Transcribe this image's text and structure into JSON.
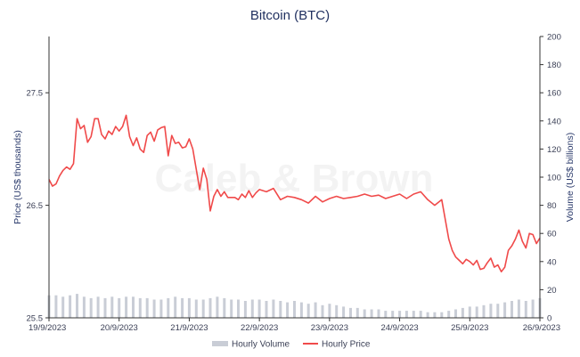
{
  "chart_data": {
    "type": "line",
    "title": "Bitcoin (BTC)",
    "watermark": "Caleb & Brown",
    "ylabel_left": "Price (US$ thousands)",
    "ylabel_right": "Volume (US$ billions)",
    "ylim_left": [
      25.5,
      28.0
    ],
    "ylim_right": [
      0,
      200
    ],
    "yticks_left": [
      "25.5",
      "26.5",
      "27.5"
    ],
    "yticks_left_values": [
      25.5,
      26.5,
      27.5
    ],
    "yticks_right": [
      "0",
      "20",
      "40",
      "60",
      "80",
      "100",
      "120",
      "140",
      "160",
      "180",
      "200"
    ],
    "yticks_right_values": [
      0,
      20,
      40,
      60,
      80,
      100,
      120,
      140,
      160,
      180,
      200
    ],
    "xticks": [
      "19/9/2023",
      "20/9/2023",
      "21/9/2023",
      "22/9/2023",
      "23/9/2023",
      "24/9/2023",
      "25/9/2023",
      "26/9/2023"
    ],
    "xticks_values": [
      0,
      1,
      2,
      3,
      4,
      5,
      6,
      7
    ],
    "xlim": [
      0,
      7
    ],
    "legend": [
      {
        "label": "Hourly Volume",
        "color": "#c9cdd6",
        "kind": "bar"
      },
      {
        "label": "Hourly Price",
        "color": "#f04a4a",
        "kind": "line"
      }
    ],
    "legend_position": "bottom",
    "grid": false,
    "series": [
      {
        "name": "Hourly Price",
        "axis": "left",
        "color": "#f04a4a",
        "x": [
          0,
          0.05,
          0.1,
          0.15,
          0.2,
          0.25,
          0.3,
          0.35,
          0.4,
          0.45,
          0.5,
          0.55,
          0.6,
          0.65,
          0.7,
          0.75,
          0.8,
          0.85,
          0.9,
          0.95,
          1.0,
          1.05,
          1.1,
          1.15,
          1.2,
          1.25,
          1.3,
          1.35,
          1.4,
          1.45,
          1.5,
          1.55,
          1.6,
          1.65,
          1.7,
          1.75,
          1.8,
          1.85,
          1.9,
          1.95,
          2.0,
          2.05,
          2.1,
          2.15,
          2.2,
          2.25,
          2.3,
          2.35,
          2.4,
          2.45,
          2.5,
          2.55,
          2.6,
          2.65,
          2.7,
          2.75,
          2.8,
          2.85,
          2.9,
          2.95,
          3.0,
          3.1,
          3.2,
          3.3,
          3.4,
          3.5,
          3.6,
          3.7,
          3.8,
          3.9,
          4.0,
          4.1,
          4.2,
          4.3,
          4.4,
          4.5,
          4.6,
          4.7,
          4.8,
          4.9,
          5.0,
          5.1,
          5.2,
          5.3,
          5.4,
          5.5,
          5.6,
          5.7,
          5.75,
          5.8,
          5.85,
          5.9,
          5.95,
          6.0,
          6.05,
          6.1,
          6.15,
          6.2,
          6.25,
          6.3,
          6.35,
          6.4,
          6.45,
          6.5,
          6.55,
          6.6,
          6.65,
          6.7,
          6.75,
          6.8,
          6.85,
          6.9,
          6.95,
          7.0
        ],
        "values": [
          26.73,
          26.67,
          26.69,
          26.76,
          26.81,
          26.84,
          26.82,
          26.87,
          27.27,
          27.18,
          27.21,
          27.06,
          27.11,
          27.27,
          27.27,
          27.13,
          27.09,
          27.16,
          27.13,
          27.2,
          27.16,
          27.2,
          27.3,
          27.11,
          27.03,
          27.1,
          27.0,
          26.97,
          27.12,
          27.15,
          27.07,
          27.17,
          27.19,
          27.2,
          26.94,
          27.12,
          27.05,
          27.06,
          27.01,
          27.02,
          27.09,
          27.0,
          26.82,
          26.64,
          26.83,
          26.73,
          26.45,
          26.58,
          26.64,
          26.58,
          26.62,
          26.57,
          26.57,
          26.57,
          26.55,
          26.6,
          26.57,
          26.63,
          26.57,
          26.61,
          26.64,
          26.62,
          26.65,
          26.55,
          26.58,
          26.57,
          26.55,
          26.52,
          26.58,
          26.53,
          26.56,
          26.58,
          26.56,
          26.57,
          26.58,
          26.6,
          26.58,
          26.59,
          26.56,
          26.58,
          26.6,
          26.56,
          26.6,
          26.62,
          26.55,
          26.5,
          26.55,
          26.2,
          26.1,
          26.04,
          26.01,
          25.98,
          26.02,
          26.0,
          25.97,
          26.01,
          25.93,
          25.94,
          25.99,
          26.03,
          25.95,
          25.97,
          25.91,
          25.95,
          26.1,
          26.14,
          26.2,
          26.28,
          26.18,
          26.12,
          26.25,
          26.24,
          26.16,
          26.21
        ]
      },
      {
        "name": "Hourly Volume",
        "axis": "right",
        "color": "#c9cdd6",
        "x": [
          0,
          0.1,
          0.2,
          0.3,
          0.4,
          0.5,
          0.6,
          0.7,
          0.8,
          0.9,
          1.0,
          1.1,
          1.2,
          1.3,
          1.4,
          1.5,
          1.6,
          1.7,
          1.8,
          1.9,
          2.0,
          2.1,
          2.2,
          2.3,
          2.4,
          2.5,
          2.6,
          2.7,
          2.8,
          2.9,
          3.0,
          3.1,
          3.2,
          3.3,
          3.4,
          3.5,
          3.6,
          3.7,
          3.8,
          3.9,
          4.0,
          4.1,
          4.2,
          4.3,
          4.4,
          4.5,
          4.6,
          4.7,
          4.8,
          4.9,
          5.0,
          5.1,
          5.2,
          5.3,
          5.4,
          5.5,
          5.6,
          5.7,
          5.8,
          5.9,
          6.0,
          6.1,
          6.2,
          6.3,
          6.4,
          6.5,
          6.6,
          6.7,
          6.8,
          6.9,
          7.0
        ],
        "values": [
          16,
          16,
          15,
          16,
          17,
          15,
          14,
          15,
          14,
          15,
          14,
          15,
          15,
          14,
          14,
          13,
          13,
          14,
          15,
          14,
          14,
          13,
          13,
          14,
          15,
          14,
          13,
          13,
          12,
          13,
          13,
          12,
          13,
          12,
          11,
          12,
          11,
          10,
          11,
          9,
          10,
          9,
          8,
          7,
          7,
          6,
          6,
          6,
          5,
          5,
          5,
          5,
          5,
          5,
          4,
          4,
          4,
          5,
          6,
          7,
          8,
          8,
          9,
          10,
          10,
          11,
          12,
          13,
          12,
          13,
          14
        ]
      }
    ]
  }
}
